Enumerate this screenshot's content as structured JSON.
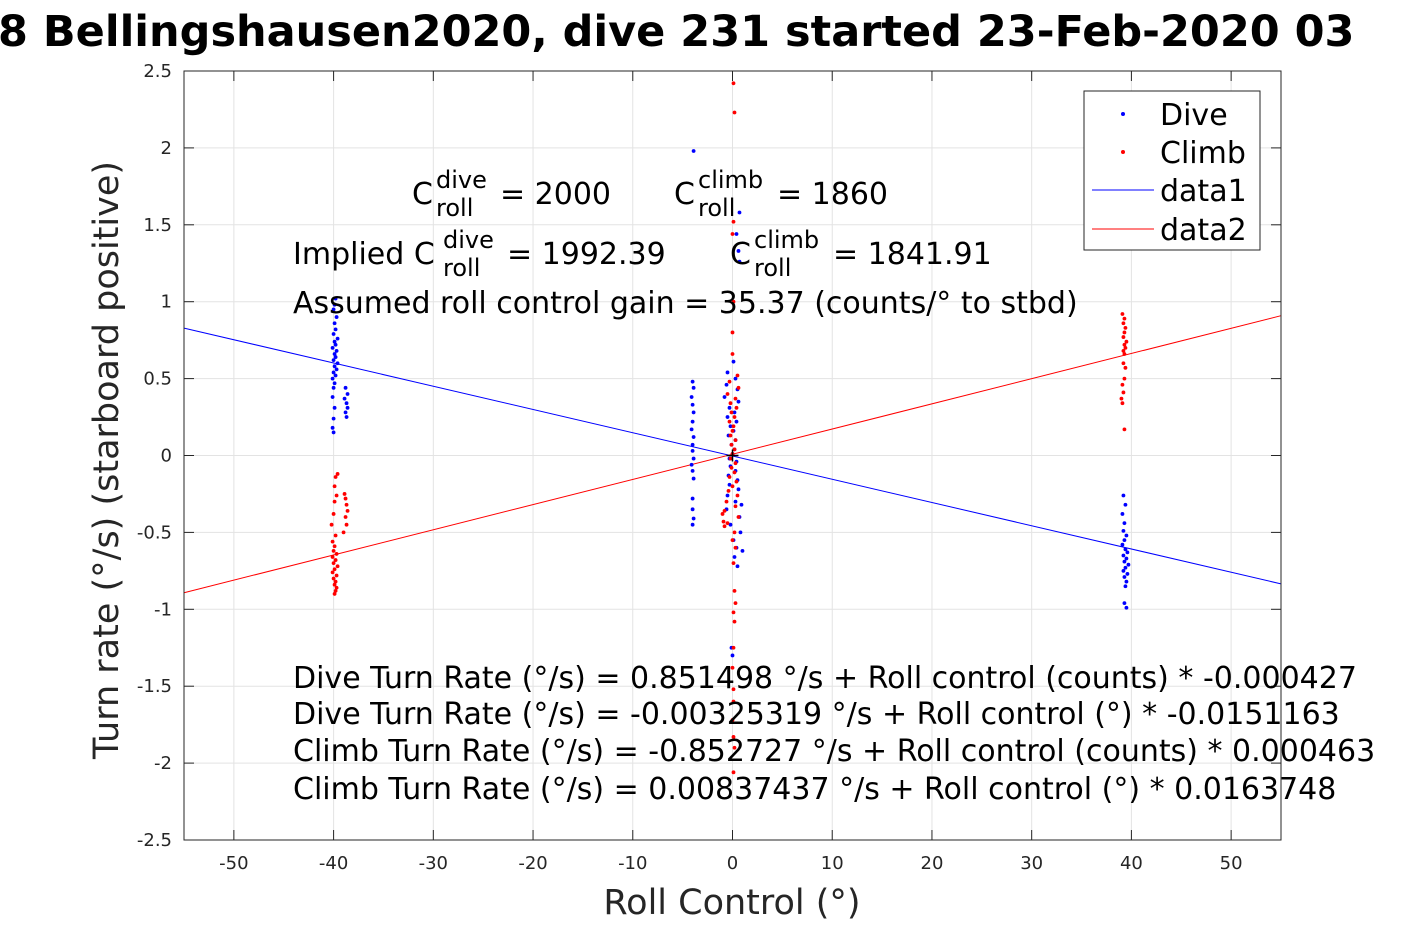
{
  "chart_data": {
    "type": "scatter",
    "title": "8 Bellingshausen2020, dive 231 started 23-Feb-2020 03",
    "xlabel": "Roll Control (°)",
    "ylabel": "Turn rate (°/s) (starboard positive)",
    "xlim": [
      -55,
      55
    ],
    "ylim": [
      -2.5,
      2.5
    ],
    "xticks": [
      -50,
      -40,
      -30,
      -20,
      -10,
      0,
      10,
      20,
      30,
      40,
      50
    ],
    "xtick_labels": [
      "-50",
      "-40",
      "-30",
      "-20",
      "-10",
      "0",
      "10",
      "20",
      "30",
      "40",
      "50"
    ],
    "yticks": [
      -2.5,
      -2,
      -1.5,
      -1,
      -0.5,
      0,
      0.5,
      1,
      1.5,
      2,
      2.5
    ],
    "ytick_labels": [
      "-2.5",
      "-2",
      "-1.5",
      "-1",
      "-0.5",
      "0",
      "0.5",
      "1",
      "1.5",
      "2",
      "2.5"
    ],
    "grid": true,
    "legend_position": "top-right",
    "series": [
      {
        "name": "Dive",
        "kind": "scatter",
        "color": "#0000ff",
        "points": [
          [
            -39.8,
            1.02
          ],
          [
            -39.9,
            0.98
          ],
          [
            -40.0,
            0.95
          ],
          [
            -39.7,
            0.9
          ],
          [
            -39.9,
            0.86
          ],
          [
            -39.8,
            0.82
          ],
          [
            -40.0,
            0.79
          ],
          [
            -39.6,
            0.76
          ],
          [
            -39.9,
            0.74
          ],
          [
            -39.8,
            0.72
          ],
          [
            -40.1,
            0.7
          ],
          [
            -39.7,
            0.68
          ],
          [
            -39.9,
            0.66
          ],
          [
            -39.8,
            0.64
          ],
          [
            -40.0,
            0.62
          ],
          [
            -39.6,
            0.6
          ],
          [
            -39.9,
            0.58
          ],
          [
            -39.7,
            0.56
          ],
          [
            -40.0,
            0.54
          ],
          [
            -39.8,
            0.52
          ],
          [
            -40.1,
            0.5
          ],
          [
            -39.9,
            0.47
          ],
          [
            -40.0,
            0.44
          ],
          [
            -38.8,
            0.44
          ],
          [
            -38.6,
            0.4
          ],
          [
            -38.9,
            0.37
          ],
          [
            -38.7,
            0.34
          ],
          [
            -38.6,
            0.31
          ],
          [
            -38.8,
            0.28
          ],
          [
            -38.7,
            0.25
          ],
          [
            -40.1,
            0.38
          ],
          [
            -39.9,
            0.31
          ],
          [
            -40.0,
            0.24
          ],
          [
            -40.1,
            0.18
          ],
          [
            -40.0,
            0.15
          ],
          [
            -4.0,
            0.48
          ],
          [
            -3.9,
            0.44
          ],
          [
            -4.1,
            0.38
          ],
          [
            -4.0,
            0.33
          ],
          [
            -3.9,
            0.28
          ],
          [
            -4.0,
            0.22
          ],
          [
            -4.1,
            0.17
          ],
          [
            -3.9,
            0.12
          ],
          [
            -4.0,
            0.07
          ],
          [
            -4.0,
            0.03
          ],
          [
            -3.9,
            -0.02
          ],
          [
            -4.1,
            -0.06
          ],
          [
            -4.0,
            -0.1
          ],
          [
            -3.9,
            -0.15
          ],
          [
            -4.0,
            -0.28
          ],
          [
            -4.0,
            -0.35
          ],
          [
            -3.9,
            -0.41
          ],
          [
            -4.0,
            -0.45
          ],
          [
            -3.9,
            1.98
          ],
          [
            0.7,
            1.58
          ],
          [
            0.4,
            1.44
          ],
          [
            0.6,
            1.33
          ],
          [
            0.7,
            1.26
          ],
          [
            0.1,
            0.61
          ],
          [
            -0.5,
            0.54
          ],
          [
            0.3,
            0.5
          ],
          [
            -0.6,
            0.46
          ],
          [
            0.5,
            0.43
          ],
          [
            -0.8,
            0.38
          ],
          [
            0.6,
            0.35
          ],
          [
            -0.3,
            0.31
          ],
          [
            0.2,
            0.28
          ],
          [
            -0.5,
            0.25
          ],
          [
            0.4,
            0.22
          ],
          [
            -0.2,
            0.19
          ],
          [
            0.1,
            0.16
          ],
          [
            -0.4,
            0.13
          ],
          [
            0.3,
            0.1
          ],
          [
            -0.1,
            0.07
          ],
          [
            0.2,
            0.04
          ],
          [
            0.0,
            0.01
          ],
          [
            -0.3,
            -0.02
          ],
          [
            0.4,
            -0.04
          ],
          [
            -0.2,
            -0.07
          ],
          [
            0.3,
            -0.1
          ],
          [
            -0.4,
            -0.13
          ],
          [
            0.5,
            -0.16
          ],
          [
            -0.3,
            -0.19
          ],
          [
            0.6,
            -0.22
          ],
          [
            -0.5,
            -0.26
          ],
          [
            0.3,
            -0.3
          ],
          [
            0.9,
            -0.32
          ],
          [
            -0.6,
            -0.35
          ],
          [
            0.7,
            -0.4
          ],
          [
            -0.2,
            -0.45
          ],
          [
            0.8,
            -0.5
          ],
          [
            0.1,
            -0.55
          ],
          [
            0.4,
            -0.6
          ],
          [
            1.0,
            -0.62
          ],
          [
            0.2,
            -0.66
          ],
          [
            0.5,
            -0.72
          ],
          [
            -0.1,
            -1.25
          ],
          [
            0.0,
            -1.3
          ],
          [
            39.2,
            -0.26
          ],
          [
            39.4,
            -0.32
          ],
          [
            39.1,
            -0.38
          ],
          [
            39.3,
            -0.44
          ],
          [
            39.2,
            -0.49
          ],
          [
            39.5,
            -0.52
          ],
          [
            39.3,
            -0.55
          ],
          [
            39.1,
            -0.58
          ],
          [
            39.4,
            -0.61
          ],
          [
            39.6,
            -0.63
          ],
          [
            39.2,
            -0.65
          ],
          [
            39.5,
            -0.67
          ],
          [
            39.3,
            -0.69
          ],
          [
            39.7,
            -0.71
          ],
          [
            39.4,
            -0.73
          ],
          [
            39.2,
            -0.75
          ],
          [
            39.6,
            -0.77
          ],
          [
            39.3,
            -0.79
          ],
          [
            39.5,
            -0.82
          ],
          [
            39.4,
            -0.85
          ],
          [
            39.3,
            -0.96
          ],
          [
            39.5,
            -0.99
          ]
        ]
      },
      {
        "name": "Climb",
        "kind": "scatter",
        "color": "#ff0000",
        "points": [
          [
            -39.6,
            -0.12
          ],
          [
            -39.8,
            -0.14
          ],
          [
            -39.9,
            -0.2
          ],
          [
            -39.7,
            -0.26
          ],
          [
            -39.9,
            -0.3
          ],
          [
            -38.9,
            -0.25
          ],
          [
            -38.8,
            -0.28
          ],
          [
            -38.7,
            -0.32
          ],
          [
            -38.6,
            -0.36
          ],
          [
            -38.8,
            -0.4
          ],
          [
            -38.7,
            -0.45
          ],
          [
            -39.0,
            -0.5
          ],
          [
            -40.0,
            -0.38
          ],
          [
            -40.2,
            -0.45
          ],
          [
            -39.8,
            -0.52
          ],
          [
            -40.1,
            -0.56
          ],
          [
            -39.9,
            -0.59
          ],
          [
            -40.0,
            -0.62
          ],
          [
            -39.7,
            -0.64
          ],
          [
            -40.1,
            -0.66
          ],
          [
            -39.8,
            -0.68
          ],
          [
            -40.0,
            -0.7
          ],
          [
            -39.6,
            -0.72
          ],
          [
            -39.9,
            -0.74
          ],
          [
            -40.1,
            -0.76
          ],
          [
            -39.7,
            -0.78
          ],
          [
            -40.0,
            -0.8
          ],
          [
            -39.8,
            -0.82
          ],
          [
            -39.9,
            -0.84
          ],
          [
            -39.7,
            -0.86
          ],
          [
            -39.8,
            -0.88
          ],
          [
            -39.9,
            -0.9
          ],
          [
            0.1,
            2.42
          ],
          [
            0.2,
            2.23
          ],
          [
            0.1,
            1.52
          ],
          [
            0.0,
            1.44
          ],
          [
            0.1,
            1.0
          ],
          [
            0.0,
            0.8
          ],
          [
            0.0,
            0.66
          ],
          [
            0.5,
            0.52
          ],
          [
            -0.3,
            0.48
          ],
          [
            0.6,
            0.44
          ],
          [
            -0.5,
            0.4
          ],
          [
            0.3,
            0.37
          ],
          [
            -0.2,
            0.34
          ],
          [
            0.4,
            0.31
          ],
          [
            -0.1,
            0.28
          ],
          [
            0.2,
            0.25
          ],
          [
            -0.3,
            0.22
          ],
          [
            0.1,
            0.19
          ],
          [
            0.0,
            0.16
          ],
          [
            -0.2,
            0.13
          ],
          [
            0.3,
            0.1
          ],
          [
            -0.1,
            0.07
          ],
          [
            0.2,
            0.04
          ],
          [
            0.0,
            0.01
          ],
          [
            -0.2,
            -0.02
          ],
          [
            0.3,
            -0.05
          ],
          [
            -0.1,
            -0.08
          ],
          [
            0.2,
            -0.11
          ],
          [
            -0.3,
            -0.14
          ],
          [
            0.4,
            -0.17
          ],
          [
            0.0,
            -0.2
          ],
          [
            -0.4,
            -0.23
          ],
          [
            0.5,
            -0.26
          ],
          [
            -0.6,
            -0.3
          ],
          [
            0.3,
            -0.33
          ],
          [
            -0.8,
            -0.36
          ],
          [
            0.6,
            -0.4
          ],
          [
            -0.5,
            -0.44
          ],
          [
            0.2,
            -0.5
          ],
          [
            0.0,
            -0.55
          ],
          [
            0.3,
            -0.6
          ],
          [
            0.1,
            -0.7
          ],
          [
            -0.9,
            -0.43
          ],
          [
            -1.0,
            -0.38
          ],
          [
            -0.8,
            -0.46
          ],
          [
            0.2,
            -0.88
          ],
          [
            0.3,
            -0.96
          ],
          [
            0.1,
            -1.02
          ],
          [
            0.2,
            -1.08
          ],
          [
            0.1,
            -1.25
          ],
          [
            0.0,
            -1.38
          ],
          [
            0.1,
            -1.52
          ],
          [
            0.1,
            -1.6
          ],
          [
            0.0,
            -1.72
          ],
          [
            0.1,
            -1.83
          ],
          [
            0.2,
            -1.9
          ],
          [
            0.1,
            -2.06
          ],
          [
            39.1,
            0.92
          ],
          [
            39.3,
            0.89
          ],
          [
            39.2,
            0.86
          ],
          [
            39.4,
            0.83
          ],
          [
            39.3,
            0.8
          ],
          [
            39.2,
            0.77
          ],
          [
            39.5,
            0.74
          ],
          [
            39.3,
            0.72
          ],
          [
            39.4,
            0.7
          ],
          [
            39.2,
            0.68
          ],
          [
            39.3,
            0.66
          ],
          [
            39.2,
            0.6
          ],
          [
            39.4,
            0.57
          ],
          [
            39.3,
            0.5
          ],
          [
            39.1,
            0.46
          ],
          [
            39.2,
            0.41
          ],
          [
            39.0,
            0.37
          ],
          [
            39.1,
            0.34
          ],
          [
            39.3,
            0.17
          ]
        ]
      },
      {
        "name": "data1",
        "kind": "line",
        "color": "#0000ff",
        "intercept": -0.00325319,
        "slope": -0.0151163
      },
      {
        "name": "data2",
        "kind": "line",
        "color": "#ff0000",
        "intercept": 0.00837437,
        "slope": 0.0163748
      }
    ],
    "annotations": {
      "c_roll_dive": {
        "base": "C",
        "sup": "dive",
        "sub": "roll",
        "value": "= 2000"
      },
      "c_roll_climb": {
        "base": "C",
        "sup": "climb",
        "sub": "roll",
        "value": "= 1860"
      },
      "implied_dive": {
        "prefix": "Implied C",
        "sup": "dive",
        "sub": "roll",
        "value": "= 1992.39"
      },
      "implied_climb": {
        "base": "C",
        "sup": "climb",
        "sub": "roll",
        "value": "= 1841.91"
      },
      "gain_text": "Assumed roll control gain = 35.37 (counts/° to stbd)",
      "equations": [
        "Dive Turn Rate (°/s) = 0.851498 °/s + Roll control (counts) * -0.000427",
        "Dive Turn Rate (°/s) = -0.00325319 °/s + Roll control (°) * -0.0151163",
        "Climb Turn Rate (°/s) = -0.852727 °/s + Roll control (counts) * 0.000463",
        "Climb Turn Rate (°/s) = 0.00837437 °/s + Roll control (°) * 0.0163748"
      ]
    }
  }
}
